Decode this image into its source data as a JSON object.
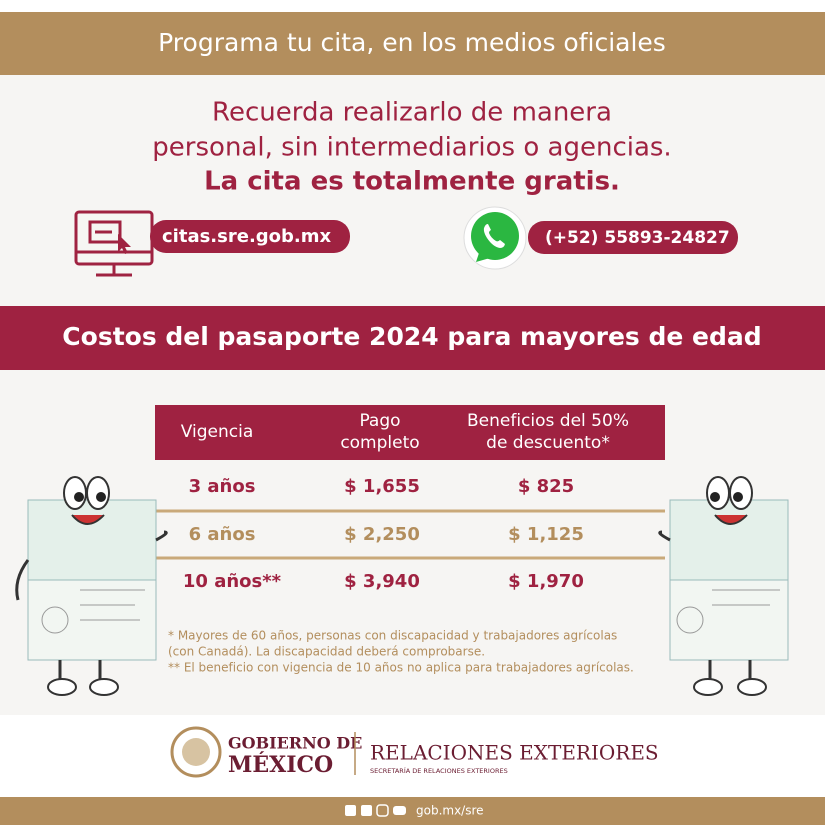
{
  "header": {
    "title": "Programa tu cita, en los medios oficiales"
  },
  "message": {
    "lines": [
      "Recuerda realizarlo de manera",
      "personal, sin intermediarios o agencias.",
      "La cita es totalmente gratis."
    ]
  },
  "contacts": {
    "website": "citas.sre.gob.mx",
    "whatsapp": "(+52) 55893-24827"
  },
  "section": {
    "title": "Costos del pasaporte 2024 para mayores de edad"
  },
  "table": {
    "columns": [
      [
        "Vigencia"
      ],
      [
        "Pago",
        "completo"
      ],
      [
        "Beneficios del 50%",
        "de descuento*"
      ]
    ],
    "rows": [
      [
        "3 años",
        "$ 1,655",
        "$ 825"
      ],
      [
        "6 años",
        "$ 2,250",
        "$ 1,125"
      ],
      [
        "10 años**",
        "$ 3,940",
        "$ 1,970"
      ]
    ]
  },
  "notes": [
    "* Mayores de 60 años, personas con discapacidad y trabajadores agrícolas",
    "(con Canadá). La discapacidad deberá comprobarse.",
    "** El beneficio con vigencia de 10 años no aplica para trabajadores agrícolas."
  ],
  "footer": {
    "government": [
      "GOBIERNO DE",
      "MÉXICO"
    ],
    "ministry": "RELACIONES EXTERIORES",
    "ministry_subtitle": "SECRETARÍA DE RELACIONES EXTERIORES",
    "url": "gob.mx/sre"
  }
}
